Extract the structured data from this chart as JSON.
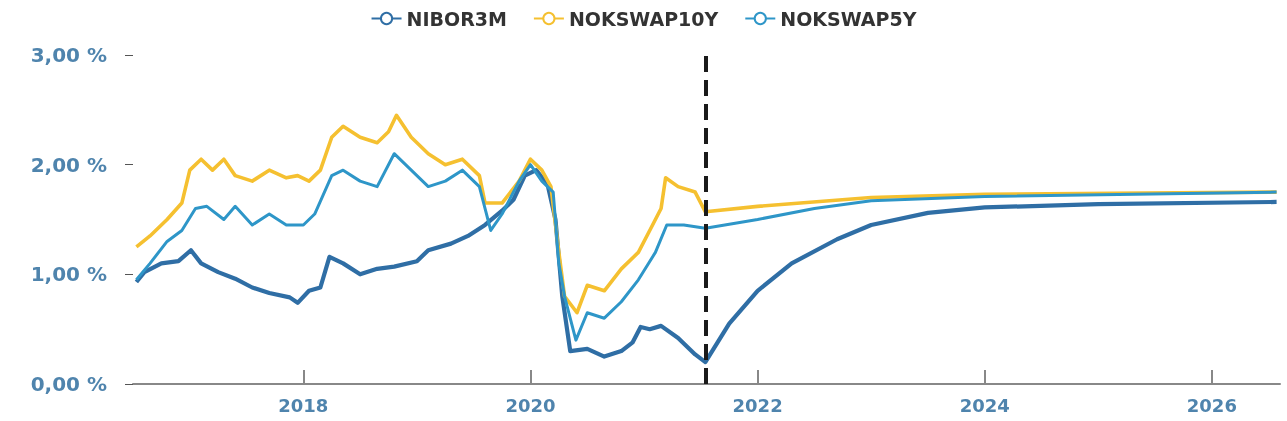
{
  "chart_data": {
    "type": "line",
    "legend": "top",
    "xlim": [
      2016.5,
      2026.6
    ],
    "xticks": [
      2018,
      2020,
      2022,
      2024,
      2026
    ],
    "ylim": [
      0,
      3
    ],
    "yticks": [
      {
        "value": 0,
        "label": "0,00 %"
      },
      {
        "value": 1,
        "label": "1,00 %"
      },
      {
        "value": 2,
        "label": "2,00 %"
      },
      {
        "value": 3,
        "label": "3,00 %"
      }
    ],
    "grid": false,
    "line_style": "solid",
    "ref_lines": [
      {
        "axis": "x",
        "value": 2021.54,
        "label": null,
        "color": "#1a1a1a",
        "line_style": "dashed"
      }
    ],
    "series": [
      {
        "name": "NIBOR3M",
        "color": "#2f6ea5",
        "x": [
          2016.53,
          2016.6,
          2016.75,
          2016.9,
          2017.01,
          2017.1,
          2017.25,
          2017.4,
          2017.55,
          2017.7,
          2017.88,
          2017.95,
          2018.05,
          2018.15,
          2018.23,
          2018.35,
          2018.5,
          2018.65,
          2018.8,
          2019.0,
          2019.1,
          2019.3,
          2019.45,
          2019.6,
          2019.75,
          2019.85,
          2019.95,
          2020.05,
          2020.15,
          2020.22,
          2020.28,
          2020.35,
          2020.5,
          2020.65,
          2020.8,
          2020.9,
          2020.97,
          2021.05,
          2021.15,
          2021.3,
          2021.45,
          2021.54,
          2021.75,
          2022.0,
          2022.3,
          2022.7,
          2023.0,
          2023.5,
          2024.0,
          2025.0,
          2026.57
        ],
        "values": [
          0.93,
          1.02,
          1.1,
          1.12,
          1.22,
          1.1,
          1.02,
          0.96,
          0.88,
          0.83,
          0.79,
          0.74,
          0.85,
          0.88,
          1.16,
          1.1,
          1.0,
          1.05,
          1.07,
          1.12,
          1.22,
          1.28,
          1.35,
          1.45,
          1.58,
          1.68,
          1.9,
          1.95,
          1.82,
          1.5,
          0.8,
          0.3,
          0.32,
          0.25,
          0.3,
          0.38,
          0.52,
          0.5,
          0.53,
          0.42,
          0.27,
          0.2,
          0.55,
          0.85,
          1.1,
          1.32,
          1.45,
          1.56,
          1.61,
          1.64,
          1.66
        ]
      },
      {
        "name": "NOKSWAP10Y",
        "color": "#f5c030",
        "x": [
          2016.53,
          2016.65,
          2016.8,
          2016.93,
          2017.0,
          2017.1,
          2017.2,
          2017.3,
          2017.4,
          2017.55,
          2017.7,
          2017.85,
          2017.95,
          2018.05,
          2018.15,
          2018.25,
          2018.35,
          2018.5,
          2018.65,
          2018.75,
          2018.82,
          2018.95,
          2019.1,
          2019.25,
          2019.4,
          2019.55,
          2019.6,
          2019.75,
          2019.9,
          2020.0,
          2020.1,
          2020.18,
          2020.25,
          2020.3,
          2020.41,
          2020.5,
          2020.65,
          2020.8,
          2020.95,
          2021.05,
          2021.15,
          2021.19,
          2021.3,
          2021.45,
          2021.54,
          2022.0,
          2023.0,
          2024.0,
          2026.57
        ],
        "values": [
          1.25,
          1.35,
          1.5,
          1.65,
          1.95,
          2.05,
          1.95,
          2.05,
          1.9,
          1.85,
          1.95,
          1.88,
          1.9,
          1.85,
          1.95,
          2.25,
          2.35,
          2.25,
          2.2,
          2.3,
          2.45,
          2.25,
          2.1,
          2.0,
          2.05,
          1.9,
          1.65,
          1.65,
          1.85,
          2.05,
          1.95,
          1.8,
          1.2,
          0.8,
          0.65,
          0.9,
          0.85,
          1.05,
          1.2,
          1.4,
          1.6,
          1.88,
          1.8,
          1.75,
          1.57,
          1.62,
          1.7,
          1.73,
          1.75
        ]
      },
      {
        "name": "NOKSWAP5Y",
        "color": "#2e96c8",
        "x": [
          2016.53,
          2016.65,
          2016.8,
          2016.93,
          2017.05,
          2017.15,
          2017.3,
          2017.4,
          2017.55,
          2017.7,
          2017.85,
          2018.0,
          2018.1,
          2018.25,
          2018.35,
          2018.5,
          2018.65,
          2018.8,
          2018.95,
          2019.1,
          2019.25,
          2019.4,
          2019.55,
          2019.65,
          2019.75,
          2019.9,
          2020.0,
          2020.1,
          2020.2,
          2020.25,
          2020.3,
          2020.4,
          2020.5,
          2020.65,
          2020.8,
          2020.95,
          2021.1,
          2021.2,
          2021.35,
          2021.54,
          2022.0,
          2022.5,
          2023.0,
          2024.0,
          2026.57
        ],
        "values": [
          0.95,
          1.1,
          1.3,
          1.4,
          1.6,
          1.62,
          1.5,
          1.62,
          1.45,
          1.55,
          1.45,
          1.45,
          1.55,
          1.9,
          1.95,
          1.85,
          1.8,
          2.1,
          1.95,
          1.8,
          1.85,
          1.95,
          1.8,
          1.4,
          1.55,
          1.85,
          2.0,
          1.85,
          1.75,
          1.1,
          0.8,
          0.4,
          0.65,
          0.6,
          0.75,
          0.95,
          1.2,
          1.45,
          1.45,
          1.42,
          1.5,
          1.6,
          1.67,
          1.71,
          1.75
        ]
      }
    ]
  }
}
